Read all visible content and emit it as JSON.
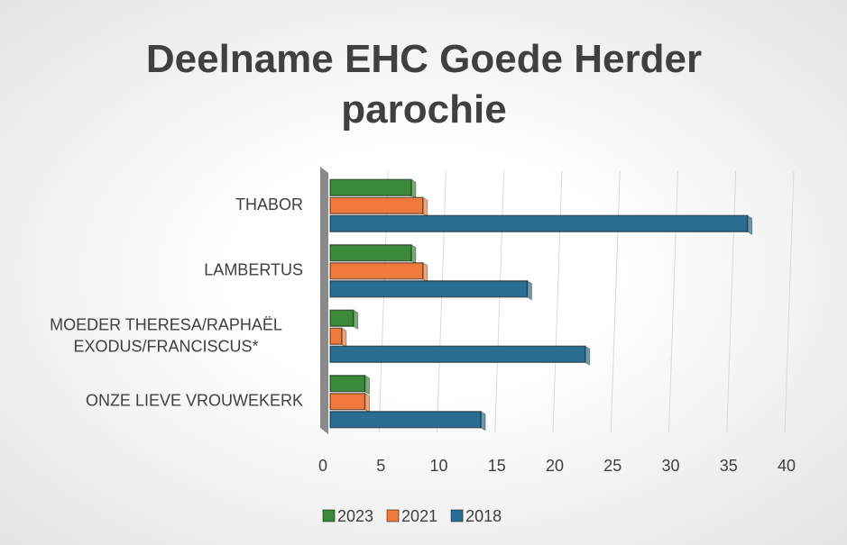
{
  "chart_data": {
    "type": "bar",
    "orientation": "horizontal",
    "title": "Deelname EHC Goede Herder parochie",
    "categories": [
      "THABOR",
      "LAMBERTUS",
      "MOEDER THERESA/RAPHAËL\nEXODUS/FRANCISCUS*",
      "ONZE LIEVE VROUWEKERK"
    ],
    "series": [
      {
        "name": "2023",
        "color": "#3a8a3a",
        "values": [
          7,
          7,
          2,
          3
        ]
      },
      {
        "name": "2021",
        "color": "#f07a3c",
        "values": [
          8,
          8,
          1,
          3
        ]
      },
      {
        "name": "2018",
        "color": "#2a6f93",
        "values": [
          36,
          17,
          22,
          13
        ]
      }
    ],
    "xlim": [
      0,
      40
    ],
    "xticks": [
      0,
      5,
      10,
      15,
      20,
      25,
      30,
      35,
      40
    ],
    "grid": true,
    "legend": "bottom"
  }
}
